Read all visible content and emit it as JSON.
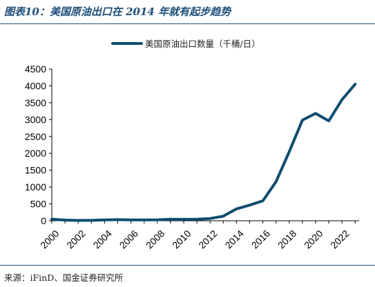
{
  "figure": {
    "title": "图表10：美国原油出口在 2014 年就有起步趋势",
    "source": "来源：iFinD、国金证券研究所"
  },
  "colors": {
    "line": "#0e4c6e",
    "accent": "#1f4e79"
  },
  "chart_data": {
    "type": "line",
    "title": "",
    "xlabel": "",
    "ylabel": "",
    "xlim": [
      2000,
      2023.3
    ],
    "ylim": [
      0,
      4500
    ],
    "x_ticks": [
      "2000",
      "2002",
      "2004",
      "2006",
      "2008",
      "2010",
      "2012",
      "2014",
      "2016",
      "2018",
      "2020",
      "2022"
    ],
    "y_ticks": [
      "0",
      "500",
      "1000",
      "1500",
      "2000",
      "2500",
      "3000",
      "3500",
      "4000",
      "4500"
    ],
    "grid": false,
    "legend_position": "top-center",
    "series": [
      {
        "name": "美国原油出口数量（千桶/日）",
        "x": [
          2000,
          2001,
          2002,
          2003,
          2004,
          2005,
          2006,
          2007,
          2008,
          2009,
          2010,
          2011,
          2012,
          2013,
          2014,
          2015,
          2016,
          2017,
          2018,
          2019,
          2020,
          2021,
          2022,
          2023
        ],
        "values": [
          50,
          20,
          10,
          12,
          27,
          32,
          25,
          27,
          29,
          44,
          42,
          47,
          67,
          134,
          351,
          465,
          591,
          1158,
          2048,
          2985,
          3183,
          2962,
          3590,
          4050
        ]
      }
    ]
  }
}
